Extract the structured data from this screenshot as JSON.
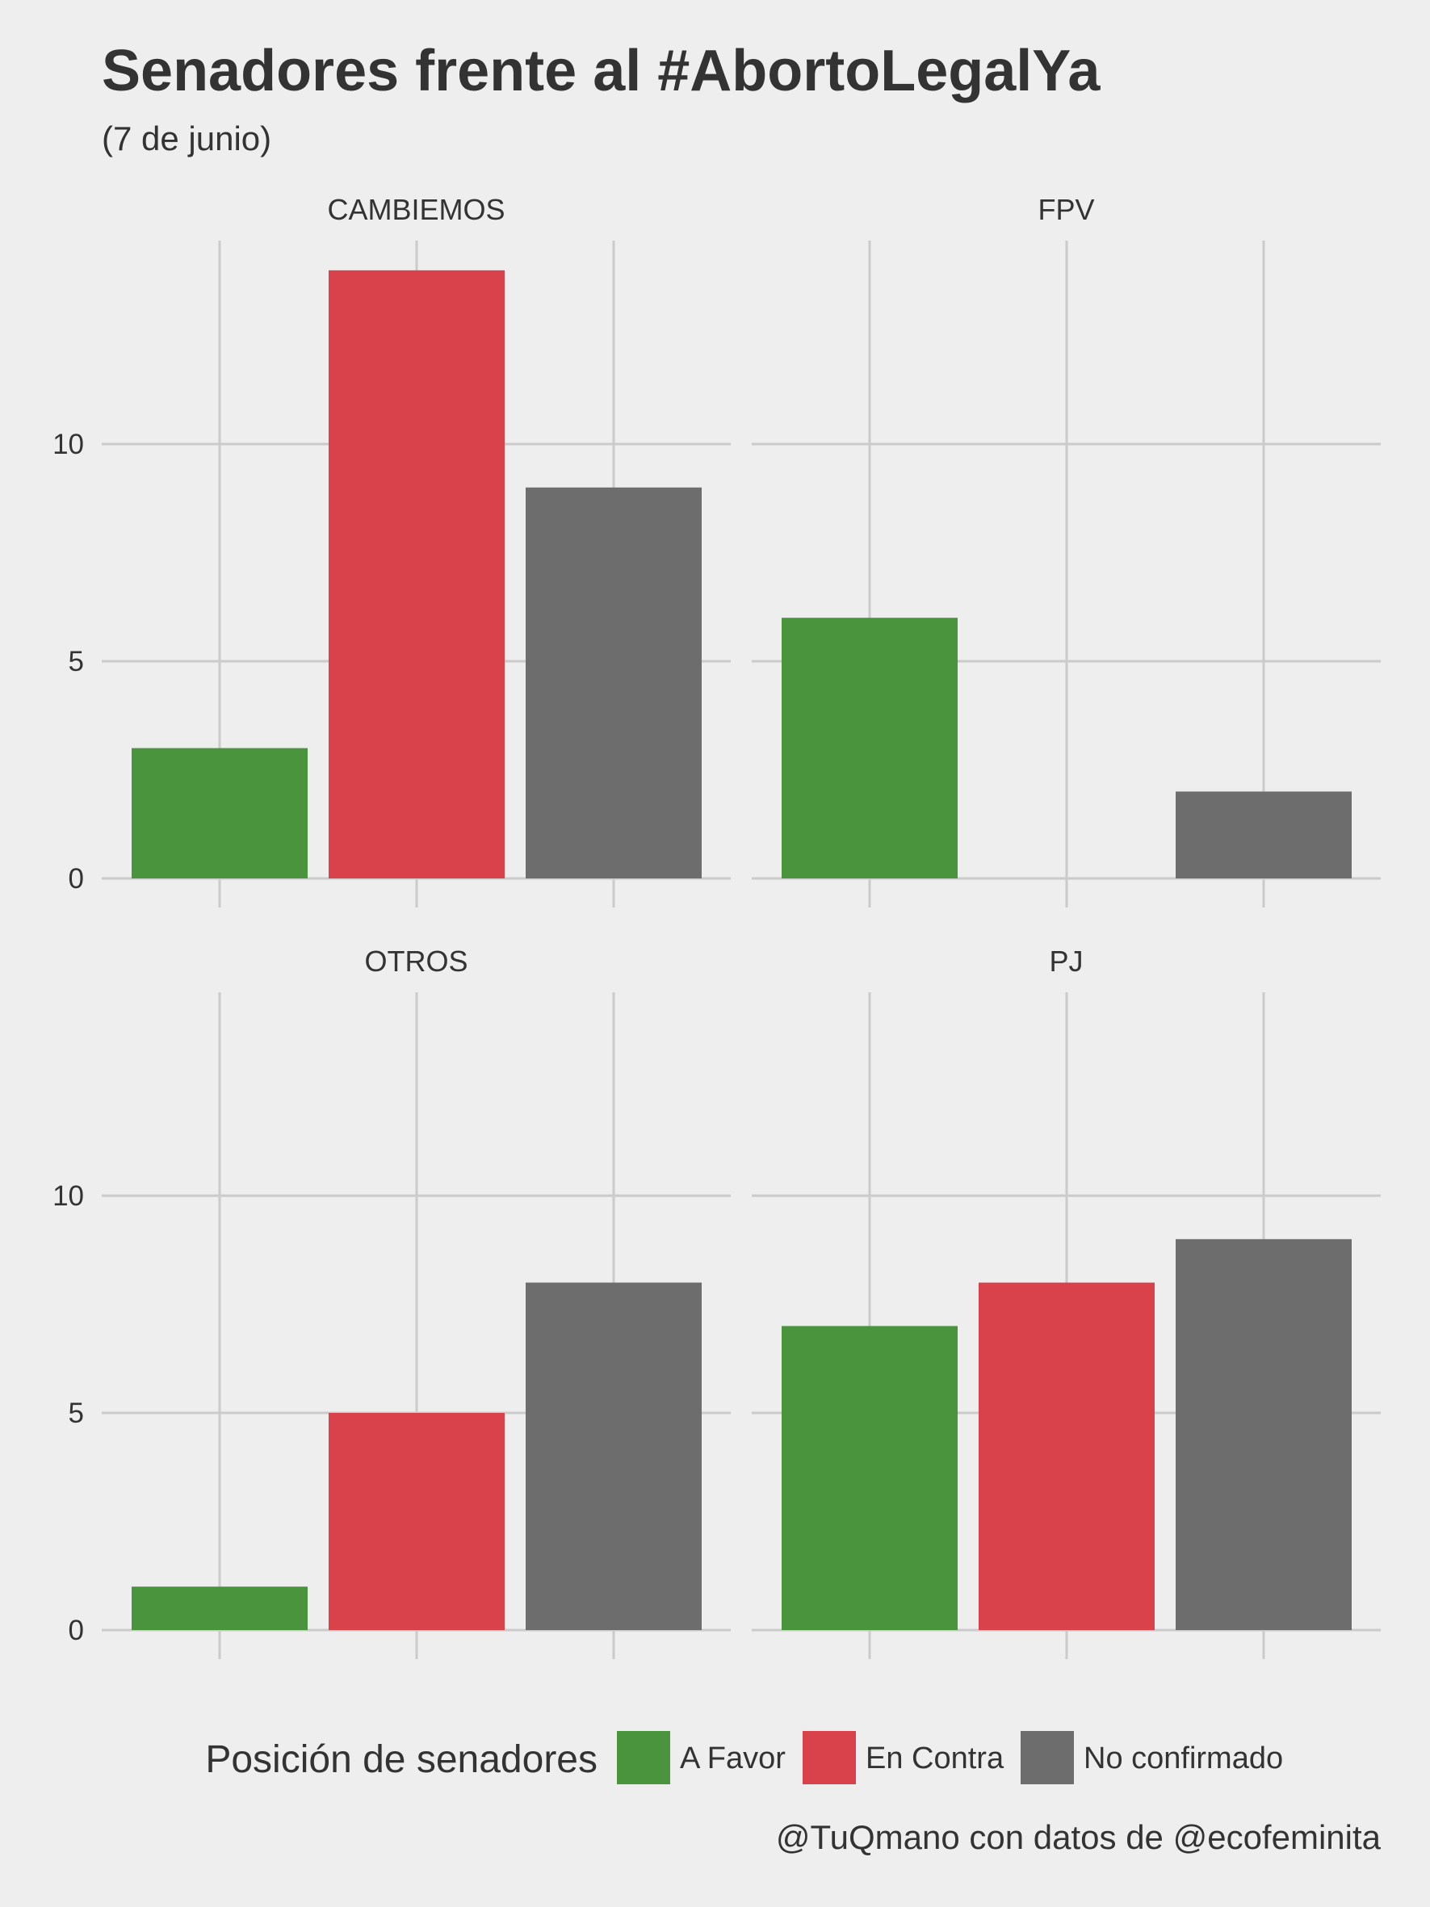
{
  "chart_data": {
    "type": "bar",
    "title": "Senadores frente al #AbortoLegalYa",
    "subtitle": "(7 de junio)",
    "caption": "@TuQmano con datos de @ecofeminita",
    "categories": [
      "A Favor",
      "En Contra",
      "No confirmado"
    ],
    "colors": [
      "#4a943e",
      "#d9424b",
      "#6d6d6d"
    ],
    "ylim": [
      0,
      14
    ],
    "yticks": [
      0,
      5,
      10
    ],
    "grid": true,
    "legend": {
      "title": "Posición de senadores",
      "placement": "bottom",
      "items": [
        "A Favor",
        "En Contra",
        "No confirmado"
      ]
    },
    "facets": [
      {
        "name": "CAMBIEMOS",
        "values": [
          3,
          14,
          9
        ]
      },
      {
        "name": "FPV",
        "values": [
          6,
          0,
          2
        ]
      },
      {
        "name": "OTROS",
        "values": [
          1,
          5,
          8
        ]
      },
      {
        "name": "PJ",
        "values": [
          7,
          8,
          9
        ]
      }
    ]
  }
}
